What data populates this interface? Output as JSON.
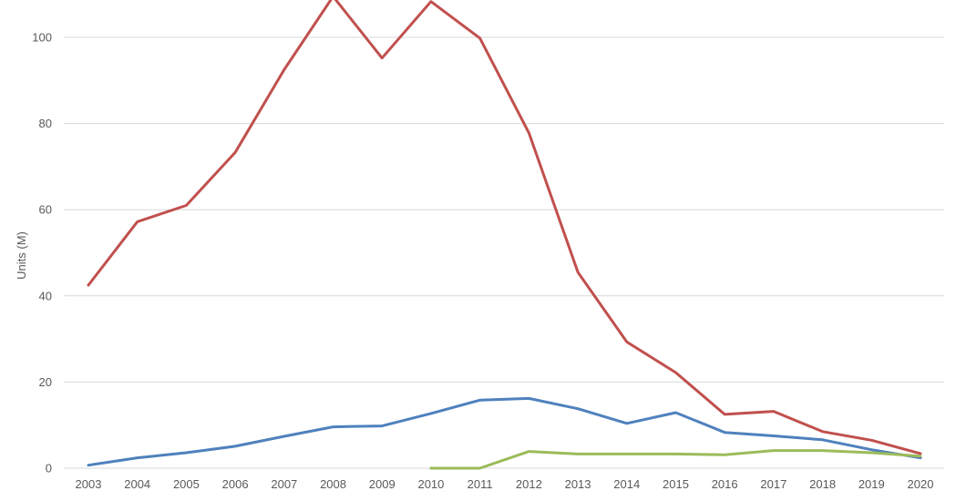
{
  "chart_data": {
    "type": "line",
    "title": "",
    "xlabel": "",
    "ylabel": "Units (M)",
    "ylim": [
      0,
      110
    ],
    "y_ticks": [
      0,
      20,
      40,
      60,
      80,
      100
    ],
    "grid": true,
    "legend": "none",
    "categories": [
      "2003",
      "2004",
      "2005",
      "2006",
      "2007",
      "2008",
      "2009",
      "2010",
      "2011",
      "2012",
      "2013",
      "2014",
      "2015",
      "2016",
      "2017",
      "2018",
      "2019",
      "2020"
    ],
    "series": [
      {
        "color": "#c0504d",
        "values": [
          42.5,
          57.2,
          61.0,
          73.3,
          92.5,
          109.5,
          95.2,
          108.3,
          99.8,
          77.8,
          45.5,
          29.3,
          22.2,
          12.5,
          13.2,
          8.5,
          6.5,
          3.4
        ]
      },
      {
        "color": "#4f81bd",
        "values": [
          0.7,
          2.4,
          3.6,
          5.1,
          7.4,
          9.6,
          9.8,
          12.7,
          15.8,
          16.2,
          13.8,
          10.4,
          12.9,
          8.3,
          7.5,
          6.6,
          4.3,
          2.4
        ]
      },
      {
        "color": "#9bbb59",
        "values": [
          null,
          null,
          null,
          null,
          null,
          null,
          null,
          0.0,
          0.0,
          3.9,
          3.3,
          3.3,
          3.3,
          3.1,
          4.1,
          4.1,
          3.6,
          2.8
        ]
      }
    ]
  }
}
